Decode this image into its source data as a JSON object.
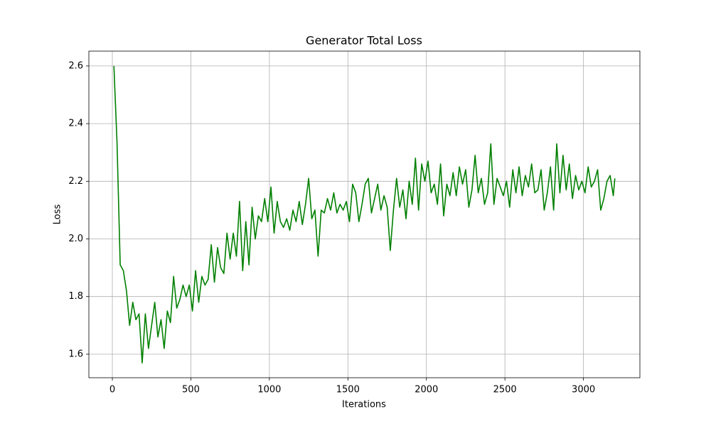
{
  "chart_data": {
    "type": "line",
    "title": "Generator Total Loss",
    "xlabel": "Iterations",
    "ylabel": "Loss",
    "color": "#008000",
    "grid": true,
    "xlim": [
      -149.5,
      3359.5
    ],
    "ylim": [
      1.5185,
      2.6515
    ],
    "xticks": [
      0,
      500,
      1000,
      1500,
      2000,
      2500,
      3000
    ],
    "yticks": [
      1.6,
      1.8,
      {
        "value": 2,
        "label": "2.0"
      },
      2.2,
      2.4,
      2.6
    ],
    "x": [
      10,
      30,
      50,
      70,
      90,
      110,
      130,
      150,
      170,
      190,
      210,
      230,
      250,
      270,
      290,
      310,
      330,
      350,
      370,
      390,
      410,
      430,
      450,
      470,
      490,
      510,
      530,
      550,
      570,
      590,
      610,
      630,
      650,
      670,
      690,
      710,
      730,
      750,
      770,
      790,
      810,
      830,
      850,
      870,
      890,
      910,
      930,
      950,
      970,
      990,
      1010,
      1030,
      1050,
      1070,
      1090,
      1110,
      1130,
      1150,
      1170,
      1190,
      1210,
      1230,
      1250,
      1270,
      1290,
      1310,
      1330,
      1350,
      1370,
      1390,
      1410,
      1430,
      1450,
      1470,
      1490,
      1510,
      1530,
      1550,
      1570,
      1590,
      1610,
      1630,
      1650,
      1670,
      1690,
      1710,
      1730,
      1750,
      1770,
      1790,
      1810,
      1830,
      1850,
      1870,
      1890,
      1910,
      1930,
      1950,
      1970,
      1990,
      2010,
      2030,
      2050,
      2070,
      2090,
      2110,
      2130,
      2150,
      2170,
      2190,
      2210,
      2230,
      2250,
      2270,
      2290,
      2310,
      2330,
      2350,
      2370,
      2390,
      2410,
      2430,
      2450,
      2470,
      2490,
      2510,
      2530,
      2550,
      2570,
      2590,
      2610,
      2630,
      2650,
      2670,
      2690,
      2710,
      2730,
      2750,
      2770,
      2790,
      2810,
      2830,
      2850,
      2870,
      2890,
      2910,
      2930,
      2950,
      2970,
      2990,
      3010,
      3030,
      3050,
      3070,
      3090,
      3110,
      3130,
      3150,
      3170,
      3190,
      3200
    ],
    "values": [
      2.6,
      2.33,
      1.91,
      1.89,
      1.82,
      1.7,
      1.78,
      1.72,
      1.74,
      1.57,
      1.74,
      1.62,
      1.7,
      1.78,
      1.66,
      1.72,
      1.62,
      1.75,
      1.71,
      1.87,
      1.76,
      1.79,
      1.84,
      1.8,
      1.84,
      1.75,
      1.89,
      1.78,
      1.87,
      1.84,
      1.86,
      1.98,
      1.85,
      1.97,
      1.9,
      1.88,
      2.02,
      1.93,
      2.02,
      1.94,
      2.13,
      1.89,
      2.06,
      1.91,
      2.11,
      2.0,
      2.08,
      2.06,
      2.14,
      2.06,
      2.18,
      2.02,
      2.13,
      2.06,
      2.04,
      2.07,
      2.03,
      2.1,
      2.06,
      2.13,
      2.05,
      2.12,
      2.21,
      2.07,
      2.1,
      1.94,
      2.1,
      2.09,
      2.14,
      2.1,
      2.16,
      2.09,
      2.12,
      2.1,
      2.13,
      2.06,
      2.19,
      2.16,
      2.06,
      2.12,
      2.19,
      2.21,
      2.09,
      2.14,
      2.19,
      2.1,
      2.15,
      2.11,
      1.96,
      2.1,
      2.21,
      2.11,
      2.17,
      2.07,
      2.2,
      2.12,
      2.28,
      2.1,
      2.26,
      2.2,
      2.27,
      2.16,
      2.19,
      2.12,
      2.26,
      2.08,
      2.19,
      2.15,
      2.23,
      2.15,
      2.25,
      2.19,
      2.24,
      2.11,
      2.17,
      2.29,
      2.16,
      2.21,
      2.12,
      2.16,
      2.33,
      2.12,
      2.21,
      2.18,
      2.15,
      2.2,
      2.11,
      2.24,
      2.16,
      2.25,
      2.15,
      2.22,
      2.18,
      2.26,
      2.16,
      2.17,
      2.24,
      2.1,
      2.16,
      2.25,
      2.1,
      2.33,
      2.16,
      2.29,
      2.17,
      2.26,
      2.14,
      2.22,
      2.17,
      2.2,
      2.16,
      2.25,
      2.18,
      2.2,
      2.24,
      2.1,
      2.14,
      2.2,
      2.22,
      2.15,
      2.21
    ]
  }
}
